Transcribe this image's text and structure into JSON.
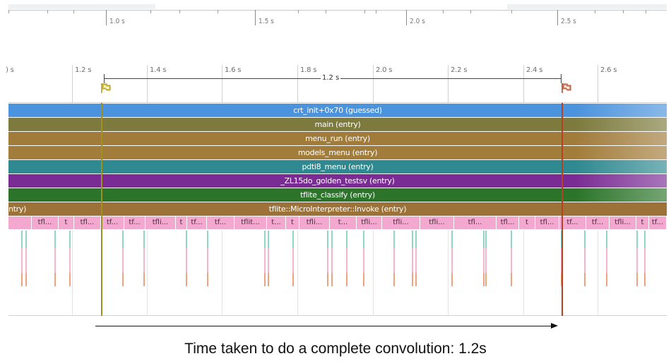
{
  "overview": {
    "ticks": [
      {
        "label": "1.0 s"
      },
      {
        "label": "1.5 s"
      },
      {
        "label": "2.0 s"
      },
      {
        "label": "2.5 s"
      }
    ]
  },
  "ruler": {
    "ticks": [
      {
        "label": ") s"
      },
      {
        "label": "1.2 s"
      },
      {
        "label": "1.4 s"
      },
      {
        "label": "1.6 s"
      },
      {
        "label": "1.8 s"
      },
      {
        "label": "2.0 s"
      },
      {
        "label": "2.2 s"
      },
      {
        "label": "2.4 s"
      },
      {
        "label": "2.6 s"
      }
    ],
    "span_label": "1.2 s",
    "start_flag_icon": "flag-icon",
    "end_flag_icon": "flag-icon"
  },
  "tracks": {
    "slices": [
      {
        "label": "crt_init+0x70 (guessed)",
        "color": "#4b93dc"
      },
      {
        "label": "main (entry)",
        "color": "#7c7a3c"
      },
      {
        "label": "menu_run (entry)",
        "color": "#a07b3a"
      },
      {
        "label": "models_menu (entry)",
        "color": "#a27c3a"
      },
      {
        "label": "pdti8_menu (entry)",
        "color": "#2e8990"
      },
      {
        "label": "_ZL15do_golden_testsv (entry)",
        "color": "#7a2c94"
      },
      {
        "label": "tflite_classify (entry)",
        "color": "#2b7429"
      },
      {
        "label": "tflite::MicroInterpreter::Invoke (entry)",
        "color": "#9c7238",
        "left_label": "ntry)"
      }
    ],
    "small_slice_labels": [
      "",
      "tfl...",
      "t",
      "tfl...",
      "tf...",
      "tf...",
      "tfli...",
      "t",
      "tf...",
      "tf...",
      "tflit...",
      "t...",
      "t",
      "tfli...",
      "t...",
      "tfli...",
      "tfli...",
      "tfli...",
      "tfl...",
      "tfl...",
      "t",
      "tfl...",
      "tf...",
      "tf...",
      "tfli...",
      "t",
      "tf..."
    ]
  },
  "annotation": {
    "caption": "Time taken to do a complete convolution: 1.2s"
  }
}
